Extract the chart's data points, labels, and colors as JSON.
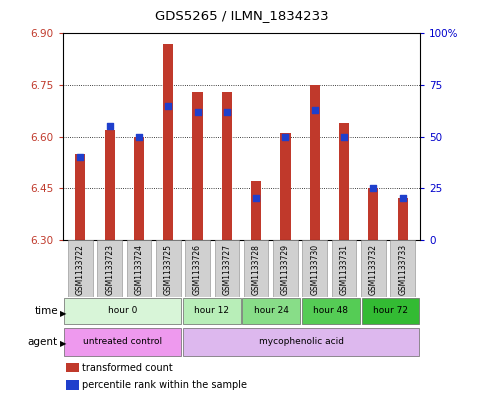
{
  "title": "GDS5265 / ILMN_1834233",
  "samples": [
    "GSM1133722",
    "GSM1133723",
    "GSM1133724",
    "GSM1133725",
    "GSM1133726",
    "GSM1133727",
    "GSM1133728",
    "GSM1133729",
    "GSM1133730",
    "GSM1133731",
    "GSM1133732",
    "GSM1133733"
  ],
  "transformed_counts": [
    6.55,
    6.62,
    6.6,
    6.87,
    6.73,
    6.73,
    6.47,
    6.61,
    6.75,
    6.64,
    6.45,
    6.42
  ],
  "percentile_ranks": [
    40,
    55,
    50,
    65,
    62,
    62,
    20,
    50,
    63,
    50,
    25,
    20
  ],
  "bar_bottom": 6.3,
  "ylim_left": [
    6.3,
    6.9
  ],
  "ylim_right": [
    0,
    100
  ],
  "yticks_left": [
    6.3,
    6.45,
    6.6,
    6.75,
    6.9
  ],
  "yticks_right": [
    0,
    25,
    50,
    75,
    100
  ],
  "ytick_labels_right": [
    "0",
    "25",
    "50",
    "75",
    "100%"
  ],
  "bar_color": "#c0392b",
  "blue_color": "#1f3fcc",
  "grid_color": "#000000",
  "time_groups": [
    {
      "label": "hour 0",
      "start": 0,
      "end": 4,
      "color": "#d8f5d8"
    },
    {
      "label": "hour 12",
      "start": 4,
      "end": 6,
      "color": "#b8eeb8"
    },
    {
      "label": "hour 24",
      "start": 6,
      "end": 8,
      "color": "#88dd88"
    },
    {
      "label": "hour 48",
      "start": 8,
      "end": 10,
      "color": "#55cc55"
    },
    {
      "label": "hour 72",
      "start": 10,
      "end": 12,
      "color": "#33bb33"
    }
  ],
  "agent_groups": [
    {
      "label": "untreated control",
      "start": 0,
      "end": 4,
      "color": "#ee99ee"
    },
    {
      "label": "mycophenolic acid",
      "start": 4,
      "end": 12,
      "color": "#ddb8ee"
    }
  ],
  "legend_items": [
    {
      "label": "transformed count",
      "color": "#c0392b",
      "marker": "s"
    },
    {
      "label": "percentile rank within the sample",
      "color": "#1f3fcc",
      "marker": "s"
    }
  ],
  "xlabel_time": "time",
  "xlabel_agent": "agent",
  "bg_color": "#ffffff",
  "plot_bg": "#ffffff",
  "tick_color_left": "#c0392b",
  "tick_color_right": "#0000cc",
  "sample_box_color": "#d0d0d0"
}
